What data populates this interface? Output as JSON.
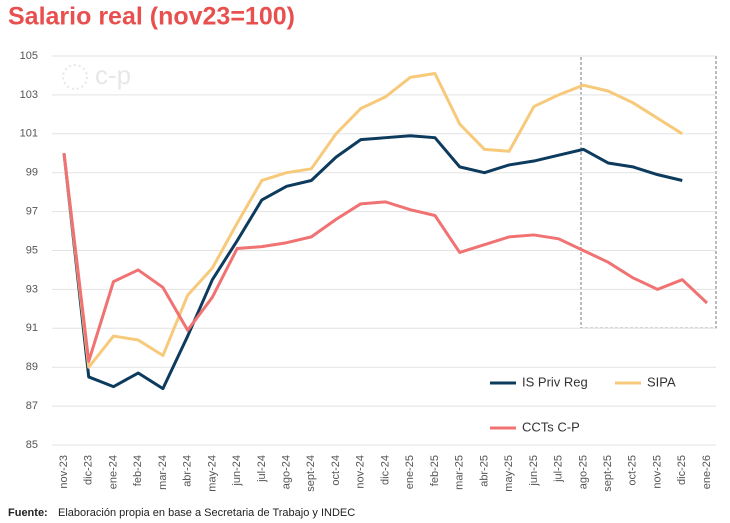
{
  "chart_data": {
    "type": "line",
    "title": "Salario real (nov23=100)",
    "logo": "c-p",
    "source_label": "Fuente:",
    "source_text": "Elaboración propia en base a Secretaria de Trabajo y INDEC",
    "categories": [
      "nov-23",
      "dic-23",
      "ene-24",
      "feb-24",
      "mar-24",
      "abr-24",
      "may-24",
      "jun-24",
      "jul-24",
      "ago-24",
      "sept-24",
      "oct-24",
      "nov-24",
      "dic-24",
      "ene-25",
      "feb-25",
      "mar-25",
      "abr-25",
      "may-25",
      "jun-25",
      "jul-25",
      "ago-25",
      "sept-25",
      "oct-25",
      "nov-25",
      "dic-25",
      "ene-26"
    ],
    "series": [
      {
        "name": "IS Priv Reg",
        "color": "#0d3b5e",
        "values": [
          100,
          88.5,
          88.0,
          88.7,
          87.9,
          90.6,
          93.5,
          95.5,
          97.6,
          98.3,
          98.6,
          99.8,
          100.7,
          100.8,
          100.9,
          100.8,
          99.3,
          99.0,
          99.4,
          99.6,
          99.9,
          100.2,
          99.5,
          99.3,
          98.9,
          98.6,
          null
        ]
      },
      {
        "name": "SIPA",
        "color": "#f7c97a",
        "values": [
          100,
          89.0,
          90.6,
          90.4,
          89.6,
          92.7,
          94.1,
          96.4,
          98.6,
          99.0,
          99.2,
          101.0,
          102.3,
          102.9,
          103.9,
          104.1,
          101.5,
          100.2,
          100.1,
          102.4,
          103.0,
          103.5,
          103.2,
          102.6,
          101.8,
          101.0,
          null
        ]
      },
      {
        "name": "CCTs C-P",
        "color": "#f07272",
        "values": [
          100,
          89.3,
          93.4,
          94.0,
          93.1,
          90.9,
          92.6,
          95.1,
          95.2,
          95.4,
          95.7,
          96.6,
          97.4,
          97.5,
          97.1,
          96.8,
          94.9,
          95.3,
          95.7,
          95.8,
          95.6,
          95.0,
          94.4,
          93.6,
          93.0,
          93.5,
          92.3
        ]
      }
    ],
    "ylim": [
      85,
      105
    ],
    "yticks": [
      85,
      87,
      89,
      91,
      93,
      95,
      97,
      99,
      101,
      103,
      105
    ],
    "grid": true
  }
}
